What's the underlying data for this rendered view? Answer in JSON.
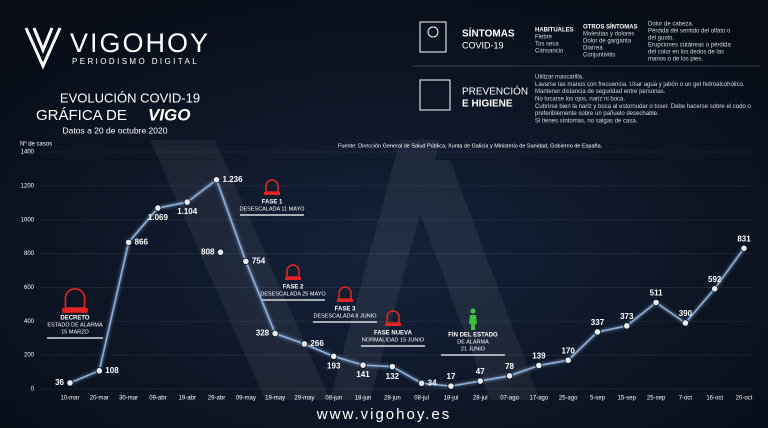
{
  "header": {
    "logo": "VIGOHOY",
    "tagline": "PERIODISMO DIGITAL",
    "footer": "www.vigohoy.es"
  },
  "symptoms": {
    "title": "SÍNTOMAS",
    "subtitle": "COVID-19",
    "common_title": "HABITUALES",
    "common": [
      "Fiebre",
      "Tos seca",
      "Cansancio"
    ],
    "other_title": "OTROS SÍNTOMAS",
    "other": [
      "Molestias y dolores",
      "Dolor de garganta",
      "Diarrea",
      "Conjuntivitis"
    ],
    "rare": [
      "Dolor de cabeza.",
      "Pérdida del sentido del olfato o",
      "del gusto.",
      "Erupciones cutáneas o pérdida",
      "del color en los dedos de las",
      "manos o de los pies."
    ]
  },
  "prevention": {
    "title": "PREVENCIÓN",
    "subtitle": "E HIGIENE",
    "items": [
      "Utilizar mascarilla.",
      "Lavarse las manos con frecuencia. Usar agua y jabón o un gel hidroalcohólico.",
      "Mantener distancia de seguridad entre personas.",
      "No tocarse los ojos, nariz ni boca.",
      "Cubrirse bien la nariz y boca al estornudar o toser. Debe hacerse sobre el codo o",
      "preferiblemente sobre un pañuelo desechable.",
      "Si tienes síntomas, no salgas de casa."
    ]
  },
  "chart_data": {
    "type": "line",
    "title": "EVOLUCIÓN COVID-19",
    "title2": "GRÁFICA DE",
    "title3": "VIGO",
    "subtitle": "Datos a 20 de octubre 2020",
    "source": "Fuente: Dirección General de Salud Pública, Xunta de Galicia y Ministerio de Sanidad, Gobierno de España.",
    "y_label": "Nº de casos",
    "categories": [
      "10-mar",
      "20-mar",
      "30-mar",
      "09-abr",
      "19-abr",
      "29-abr",
      "09-may",
      "19-may",
      "29-may",
      "08-jun",
      "18-jun",
      "28-jun",
      "08-jul",
      "18-jul",
      "28-jul",
      "07-ago",
      "17-ago",
      "25-ago",
      "5-sep",
      "15-sep",
      "25-sep",
      "7-oct",
      "16-oct",
      "20-oct"
    ],
    "series": [
      {
        "color": "#8fb0d8",
        "values": [
          36,
          108,
          866,
          1069,
          1104,
          1236,
          754,
          328,
          266,
          193,
          141,
          132,
          34,
          17,
          47,
          78,
          139,
          170,
          337,
          373,
          511,
          390,
          592,
          831
        ],
        "value_labels": [
          "36",
          "108",
          "866",
          "1.069",
          "1.104",
          "1.236",
          "754",
          "328",
          "266",
          "193",
          "141",
          "132",
          "34",
          "17",
          "47",
          "78",
          "139",
          "170",
          "337",
          "373",
          "511",
          "390",
          "592",
          "831"
        ]
      },
      {
        "color": "#8fb0d8",
        "values": [
          null,
          null,
          null,
          null,
          null,
          808,
          null,
          null,
          null,
          null,
          null,
          null,
          null,
          null,
          null,
          null,
          null,
          null,
          null,
          null,
          null,
          null,
          null,
          null
        ],
        "value_labels": [
          null,
          null,
          null,
          null,
          null,
          "808",
          null,
          null,
          null,
          null,
          null,
          null,
          null,
          null,
          null,
          null,
          null,
          null,
          null,
          null,
          null,
          null,
          null,
          null
        ]
      }
    ],
    "ylim": [
      0,
      1400
    ],
    "yticks": [
      0,
      200,
      400,
      600,
      800,
      1000,
      1200,
      1400
    ],
    "grid": true,
    "annotations": [
      {
        "title": "DECRETO",
        "lines": [
          "ESTADO DE ALARMA",
          "15 MARZO"
        ]
      },
      {
        "title": "FASE 1",
        "lines": [
          "DESESCALADA 11 MAYO"
        ]
      },
      {
        "title": "FASE 2",
        "lines": [
          "DESESCALADA 25 MAYO"
        ]
      },
      {
        "title": "FASE 3",
        "lines": [
          "DESESCALADA 8 JUNIO"
        ]
      },
      {
        "title": "FASE NUEVA",
        "lines": [
          "NORMALIDAD 15 JUNIO"
        ]
      },
      {
        "title": "FIN DEL ESTADO",
        "lines": [
          "DE ALARMA",
          "21 JUNIO"
        ]
      }
    ]
  }
}
